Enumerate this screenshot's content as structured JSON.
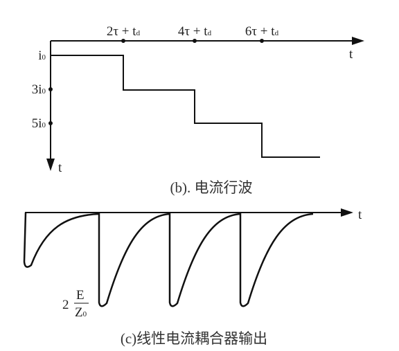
{
  "panel_b": {
    "time_labels": [
      {
        "main": "2τ + t",
        "sub": "d"
      },
      {
        "main": "4τ + t",
        "sub": "d"
      },
      {
        "main": "6τ + t",
        "sub": "d"
      }
    ],
    "t_axis": "t",
    "amplitude_labels": [
      {
        "main": "i",
        "sub": "0"
      },
      {
        "main": "3i",
        "sub": "0"
      },
      {
        "main": "5i",
        "sub": "0"
      }
    ],
    "down_axis": "t",
    "caption": "(b). 电流行波"
  },
  "panel_c": {
    "t_axis": "t",
    "peak_label": {
      "coef": "2",
      "numerator": "E",
      "denominator": "Z",
      "denominator_sub": "0"
    },
    "caption": "(c)线性电流耦合器输出"
  }
}
